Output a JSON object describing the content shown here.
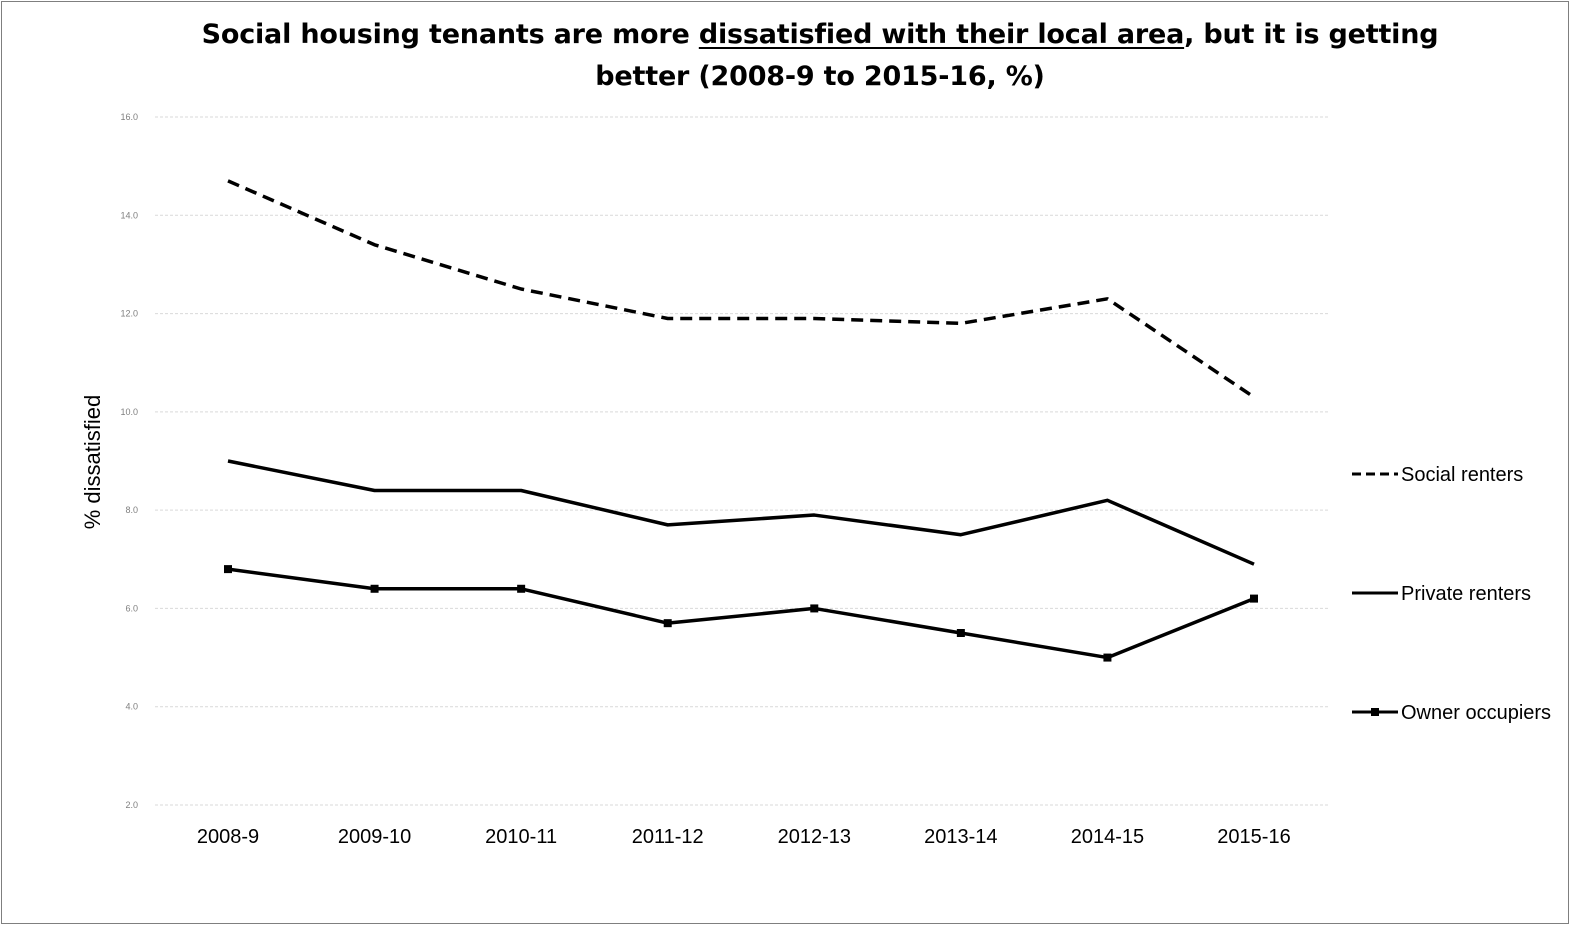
{
  "chart_data": {
    "type": "line",
    "title_pre": "Social housing tenants are more ",
    "title_underlined": "dissatisfied with their local area",
    "title_mid": ", but it is getting",
    "title_line2": "better (2008-9 to 2015-16, %)",
    "ylabel": "% dissatisfied",
    "xlabel": "",
    "ylim": [
      2.0,
      16.0
    ],
    "yticks": [
      "2.0",
      "4.0",
      "6.0",
      "8.0",
      "10.0",
      "12.0",
      "14.0",
      "16.0"
    ],
    "grid": true,
    "legend_position": "right",
    "categories": [
      "2008-9",
      "2009-10",
      "2010-11",
      "2011-12",
      "2012-13",
      "2013-14",
      "2014-15",
      "2015-16"
    ],
    "series": [
      {
        "name": "Social renters",
        "style": "dashed",
        "color": "#000000",
        "values": [
          14.7,
          13.4,
          12.5,
          11.9,
          11.9,
          11.8,
          12.3,
          10.3
        ]
      },
      {
        "name": "Private renters",
        "style": "solid",
        "color": "#000000",
        "values": [
          9.0,
          8.4,
          8.4,
          7.7,
          7.9,
          7.5,
          8.2,
          6.9
        ]
      },
      {
        "name": "Owner occupiers",
        "style": "solid-square-markers",
        "color": "#000000",
        "values": [
          6.8,
          6.4,
          6.4,
          5.7,
          6.0,
          5.5,
          5.0,
          6.2
        ]
      }
    ]
  }
}
